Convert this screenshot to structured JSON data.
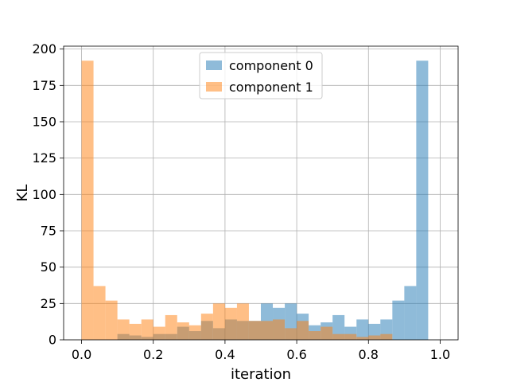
{
  "chart_data": {
    "type": "histogram",
    "xlabel": "iteration",
    "ylabel": "KL",
    "xlim": [
      -0.05,
      1.05
    ],
    "ylim": [
      0,
      202
    ],
    "xticks": [
      0.0,
      0.2,
      0.4,
      0.6,
      0.8,
      1.0
    ],
    "xtick_labels": [
      "0.0",
      "0.2",
      "0.4",
      "0.6",
      "0.8",
      "1.0"
    ],
    "yticks": [
      0,
      25,
      50,
      75,
      100,
      125,
      150,
      175,
      200
    ],
    "ytick_labels": [
      "0",
      "25",
      "50",
      "75",
      "100",
      "125",
      "150",
      "175",
      "200"
    ],
    "grid": true,
    "legend_position": "top-center",
    "bin_width": 0.0333,
    "bin_starts": [
      0.0,
      0.0333,
      0.0667,
      0.1,
      0.1333,
      0.1667,
      0.2,
      0.2333,
      0.2667,
      0.3,
      0.3333,
      0.3667,
      0.4,
      0.4333,
      0.4667,
      0.5,
      0.5333,
      0.5667,
      0.6,
      0.6333,
      0.6667,
      0.7,
      0.7333,
      0.7667,
      0.8,
      0.8333,
      0.8667,
      0.9,
      0.9333,
      0.9667
    ],
    "series": [
      {
        "name": "component 0",
        "color": "#1f77b4",
        "alpha": 0.5,
        "values": [
          0,
          0,
          0,
          4,
          3,
          2,
          4,
          4,
          9,
          6,
          13,
          8,
          14,
          13,
          13,
          25,
          22,
          25,
          18,
          10,
          12,
          17,
          9,
          14,
          11,
          14,
          27,
          37,
          192,
          0
        ]
      },
      {
        "name": "component 1",
        "color": "#ff7f0e",
        "alpha": 0.5,
        "values": [
          192,
          37,
          27,
          14,
          11,
          14,
          9,
          17,
          12,
          10,
          18,
          25,
          22,
          25,
          13,
          13,
          14,
          8,
          13,
          6,
          9,
          4,
          4,
          2,
          3,
          4,
          0,
          0,
          0,
          0
        ]
      }
    ]
  }
}
